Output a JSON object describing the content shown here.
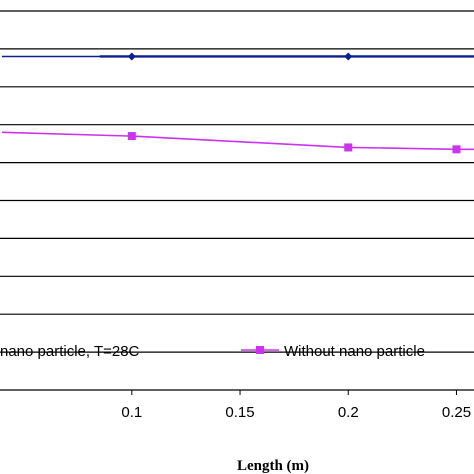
{
  "chart_data": {
    "type": "line",
    "xlabel": "Length (m)",
    "x_ticks": [
      "0.1",
      "0.15",
      "0.2",
      "0.25"
    ],
    "grid": true,
    "legend_position": "bottom",
    "series": [
      {
        "name": "nano particle, T=28C",
        "color": "#0b1f8f",
        "marker": "diamond",
        "points": [
          {
            "x": 0.04,
            "y": 8.8
          },
          {
            "x": 0.1,
            "y": 8.8
          },
          {
            "x": 0.2,
            "y": 8.8
          },
          {
            "x": 0.3,
            "y": 8.8
          }
        ],
        "markers_at": [
          0.1,
          0.2
        ]
      },
      {
        "name": "Without nano particle",
        "color": "#cc33ee",
        "marker": "square",
        "points": [
          {
            "x": 0.04,
            "y": 6.8
          },
          {
            "x": 0.1,
            "y": 6.7
          },
          {
            "x": 0.2,
            "y": 6.4
          },
          {
            "x": 0.25,
            "y": 6.35
          },
          {
            "x": 0.3,
            "y": 6.35
          }
        ],
        "markers_at": [
          0.1,
          0.2,
          0.25
        ]
      }
    ],
    "x_range": [
      0.0391,
      0.2581
    ],
    "y_range": [
      0,
      10
    ]
  }
}
